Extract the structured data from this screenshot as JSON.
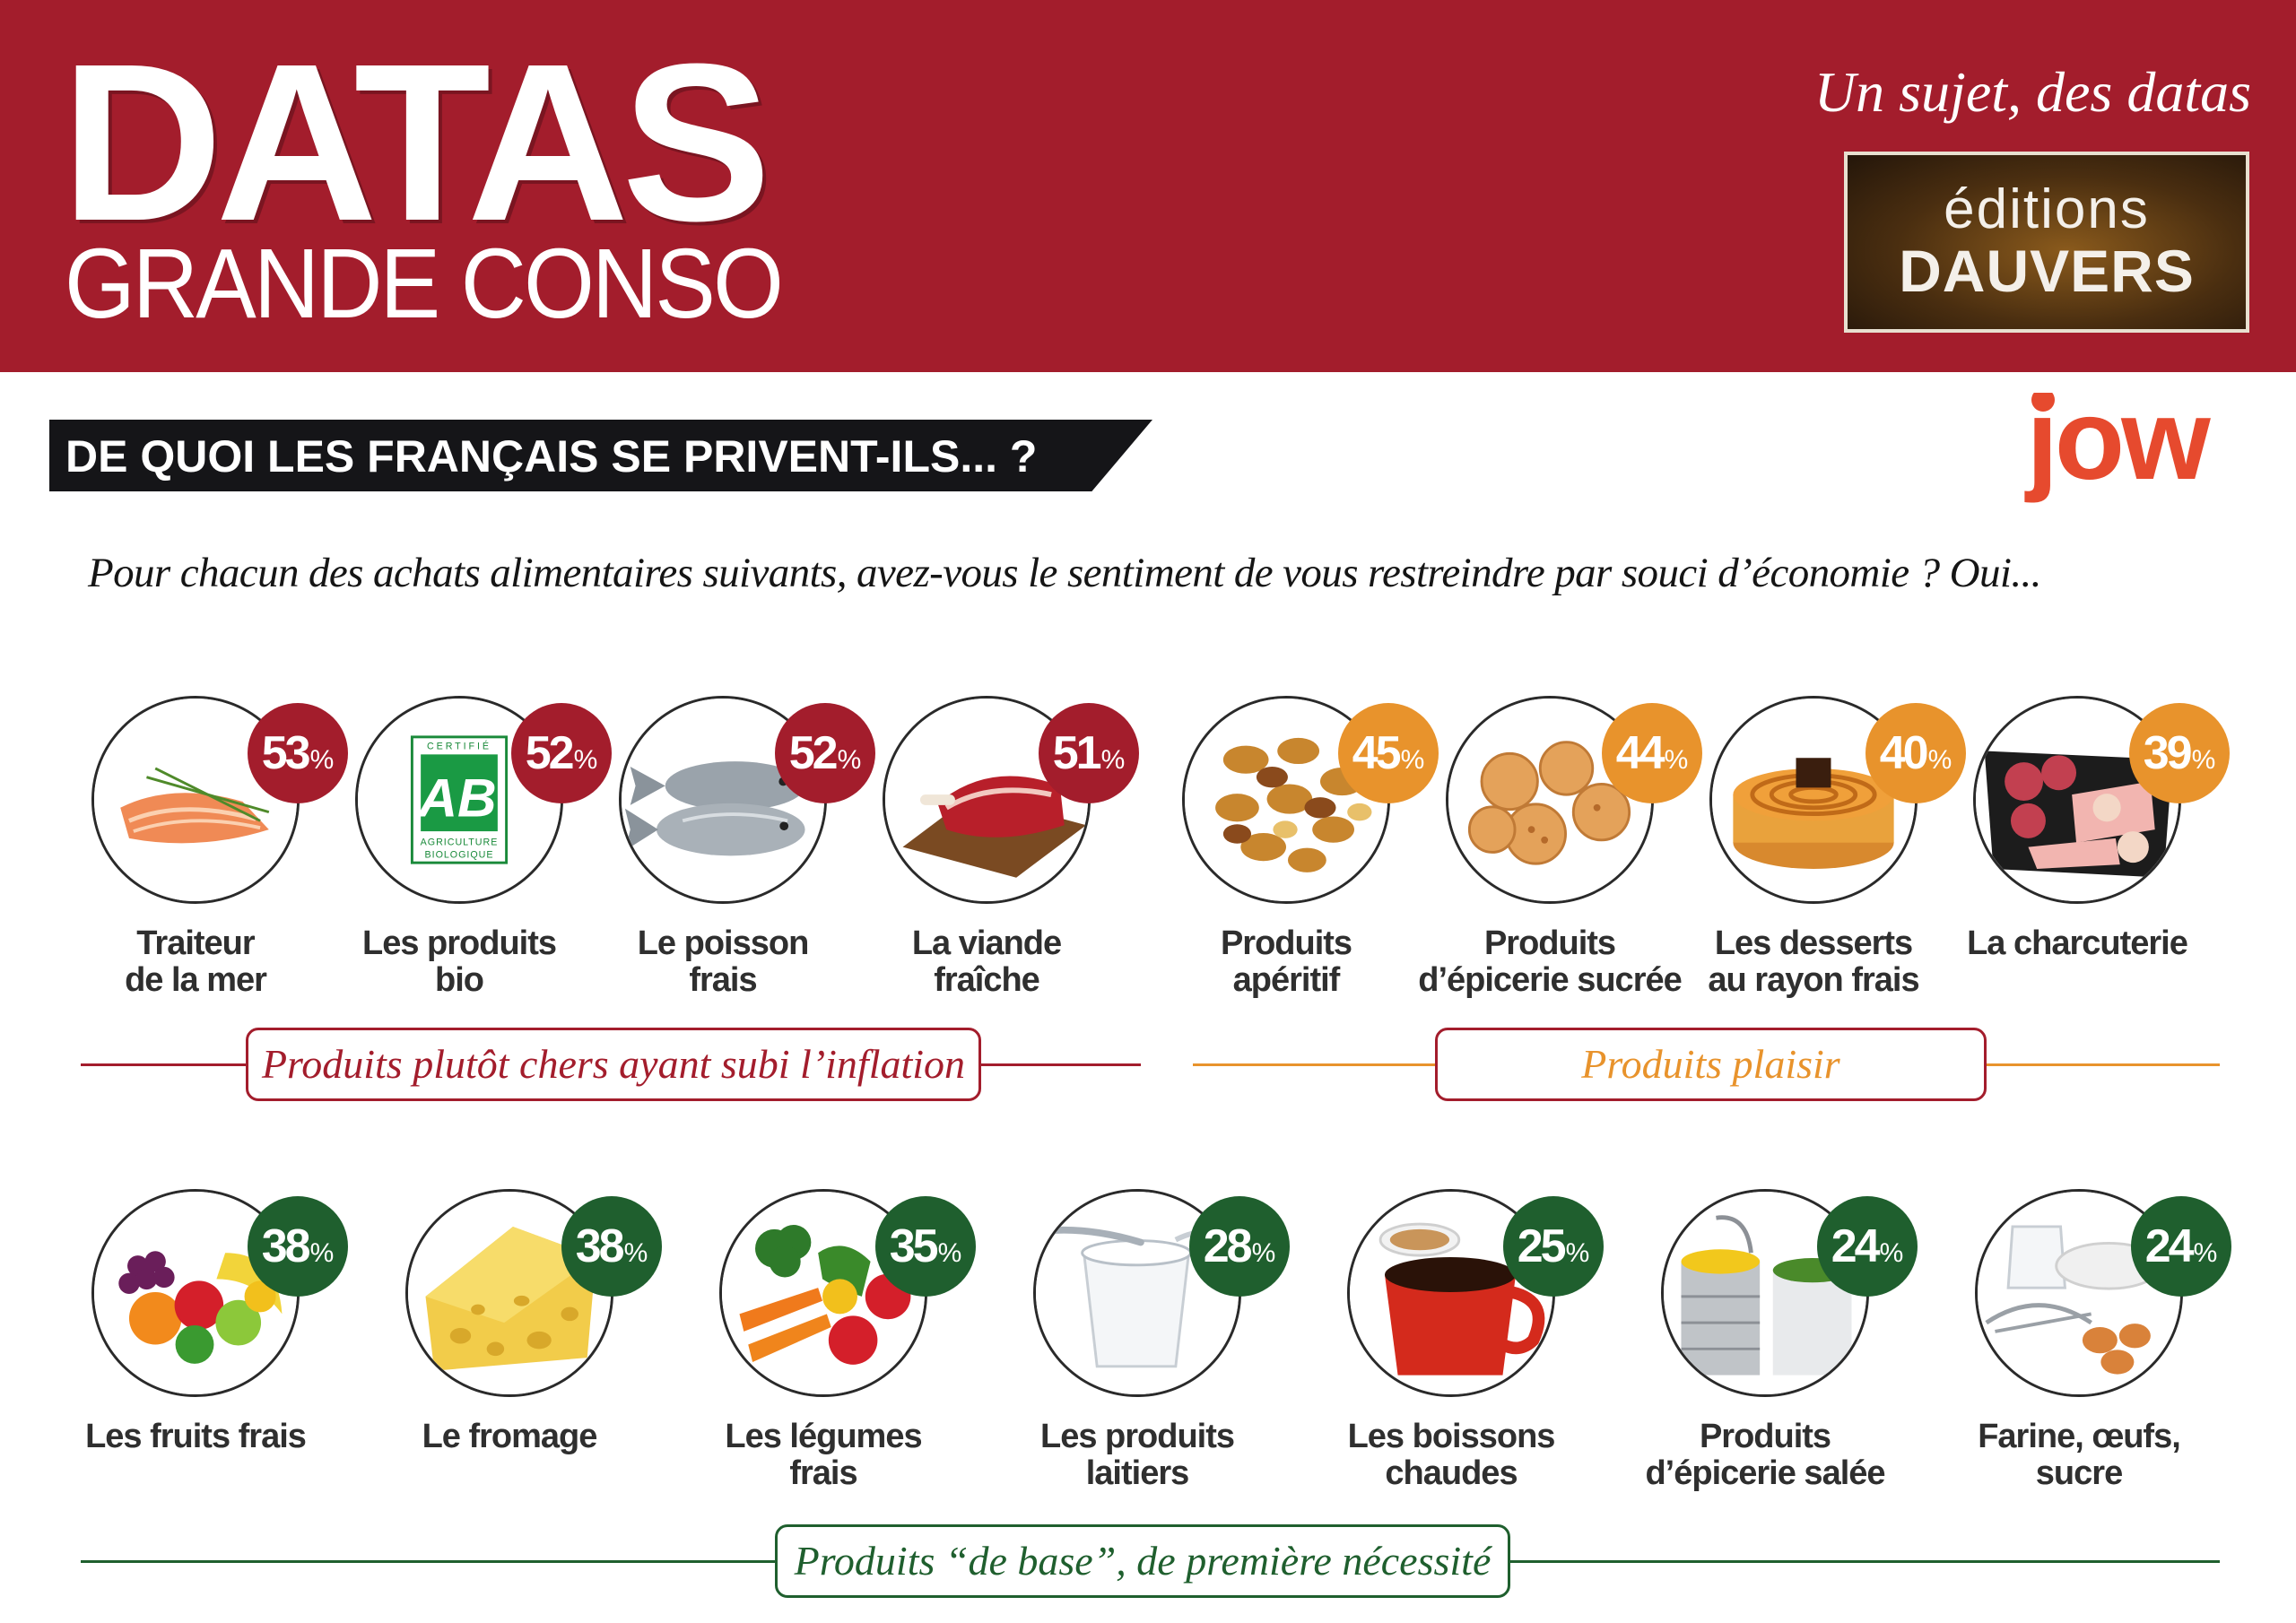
{
  "header": {
    "brand_main": "DATAS",
    "brand_sub": "GRANDE CONSO",
    "tagline": "Un sujet, des datas",
    "publisher_line1": "éditions",
    "publisher_line2": "DAUVERS"
  },
  "question_title": "DE QUOI LES FRANÇAIS SE PRIVENT-ILS... ?",
  "sponsor": "jow",
  "prompt": "Pour chacun des achats alimentaires suivants, avez-vous le sentiment de vous restreindre par souci d’économie ? Oui...",
  "colors": {
    "header": "#a31d2c",
    "red": "#a31d2c",
    "orange": "#e8932c",
    "green": "#1f5f2e",
    "sponsor": "#e64a2e"
  },
  "groups": [
    {
      "label": "Produits plutôt chers ayant subi l’inflation",
      "color": "#a31d2c",
      "items": [
        {
          "label": "Traiteur de la mer",
          "value": "53",
          "icon": "smoked-salmon-icon"
        },
        {
          "label": "Les produits bio",
          "value": "52",
          "icon": "ab-organic-logo-icon"
        },
        {
          "label": "Le poisson frais",
          "value": "52",
          "icon": "fish-icon"
        },
        {
          "label": "La viande fraîche",
          "value": "51",
          "icon": "meat-icon"
        }
      ]
    },
    {
      "label": "Produits plaisir",
      "color": "#e8932c",
      "items": [
        {
          "label": "Produits apéritif",
          "value": "45",
          "icon": "nuts-icon"
        },
        {
          "label": "Produits d’épicerie sucrée",
          "value": "44",
          "icon": "cookies-icon"
        },
        {
          "label": "Les desserts au rayon frais",
          "value": "40",
          "icon": "tart-icon"
        },
        {
          "label": "La charcuterie",
          "value": "39",
          "icon": "charcuterie-icon"
        }
      ]
    },
    {
      "label": "Produits “de base”, de première nécessité",
      "color": "#1f5f2e",
      "items": [
        {
          "label": "Les fruits frais",
          "value": "38",
          "icon": "fruits-icon"
        },
        {
          "label": "Le fromage",
          "value": "38",
          "icon": "cheese-icon"
        },
        {
          "label": "Les légumes frais",
          "value": "35",
          "icon": "vegetables-icon"
        },
        {
          "label": "Les produits laitiers",
          "value": "28",
          "icon": "yogurt-icon"
        },
        {
          "label": "Les boissons chaudes",
          "value": "25",
          "icon": "coffee-cup-icon"
        },
        {
          "label": "Produits d’épicerie salée",
          "value": "24",
          "icon": "tin-cans-icon"
        },
        {
          "label": "Farine, œufs, sucre",
          "value": "24",
          "icon": "baking-ingredients-icon"
        }
      ]
    }
  ],
  "percent_sign": "%"
}
